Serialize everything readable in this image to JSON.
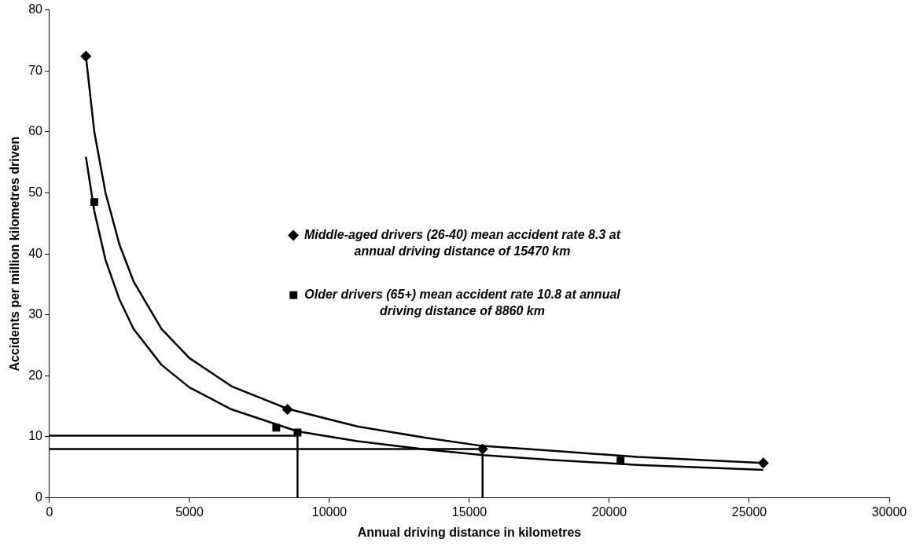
{
  "chart_data": {
    "type": "scatter",
    "xlabel": "Annual driving distance in kilometres",
    "ylabel": "Accidents per million kilometres driven",
    "xlim": [
      0,
      30000
    ],
    "xticks": [
      0,
      5000,
      10000,
      15000,
      20000,
      25000,
      30000
    ],
    "ylim": [
      0,
      80
    ],
    "yticks": [
      0,
      10,
      20,
      30,
      40,
      50,
      60,
      70,
      80
    ],
    "grid": false,
    "legend": "center",
    "series": [
      {
        "name": "Middle-aged drivers (26-40) mean accident rate 8.3 at annual driving distance of 15470 km",
        "type": "scatter",
        "marker": "diamond",
        "color": "#000000",
        "x": [
          1300,
          8500,
          15470,
          25500
        ],
        "values": [
          72.4,
          14.5,
          8.0,
          5.7
        ]
      },
      {
        "name": "Older drivers (65+) mean accident rate 10.8 at annual driving distance of 8860 km",
        "type": "scatter",
        "marker": "square",
        "color": "#000000",
        "x": [
          1600,
          8100,
          8860,
          20400
        ],
        "values": [
          48.5,
          11.5,
          10.7,
          6.1
        ]
      },
      {
        "type": "line",
        "marker": "none",
        "color": "#000000",
        "x": [
          1300,
          1600,
          2000,
          2500,
          3000,
          4000,
          5000,
          6500,
          8500,
          11000,
          13500,
          15470,
          18000,
          21000,
          25500
        ],
        "values": [
          72.4,
          60,
          50,
          41.5,
          35.5,
          27.7,
          22.9,
          18.3,
          14.6,
          11.7,
          9.8,
          8.5,
          7.7,
          6.7,
          5.7
        ]
      },
      {
        "type": "line",
        "marker": "none",
        "color": "#000000",
        "x": [
          1300,
          1600,
          2000,
          2500,
          3000,
          4000,
          5000,
          6500,
          8860,
          11000,
          13500,
          15500,
          18000,
          21000,
          25500
        ],
        "values": [
          55.9,
          47,
          39,
          32.5,
          27.7,
          21.8,
          18.1,
          14.5,
          10.9,
          9.3,
          7.9,
          7.0,
          6.2,
          5.4,
          4.6
        ]
      },
      {
        "type": "line",
        "marker": "none",
        "color": "#000000",
        "x": [
          0,
          8860,
          8860
        ],
        "values": [
          10.2,
          10.2,
          0
        ]
      },
      {
        "type": "line",
        "marker": "none",
        "color": "#000000",
        "x": [
          0,
          15470,
          15470
        ],
        "values": [
          8.0,
          8.0,
          0
        ]
      }
    ]
  }
}
